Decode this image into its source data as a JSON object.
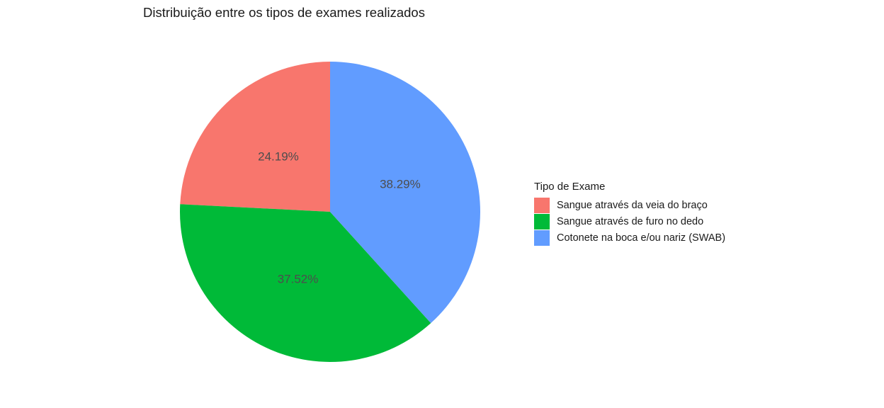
{
  "chart_data": {
    "type": "pie",
    "title": "Distribuição entre os tipos de exames realizados",
    "legend": {
      "title": "Tipo de Exame",
      "position": "right"
    },
    "slices": [
      {
        "label": "Sangue através da veia do braço",
        "value": 24.19,
        "display": "24.19%",
        "color": "#F8766D"
      },
      {
        "label": "Sangue através de furo no dedo",
        "value": 37.52,
        "display": "37.52%",
        "color": "#00BA38"
      },
      {
        "label": "Cotonete na boca e/ou nariz (SWAB)",
        "value": 38.29,
        "display": "38.29%",
        "color": "#619CFF"
      }
    ]
  }
}
